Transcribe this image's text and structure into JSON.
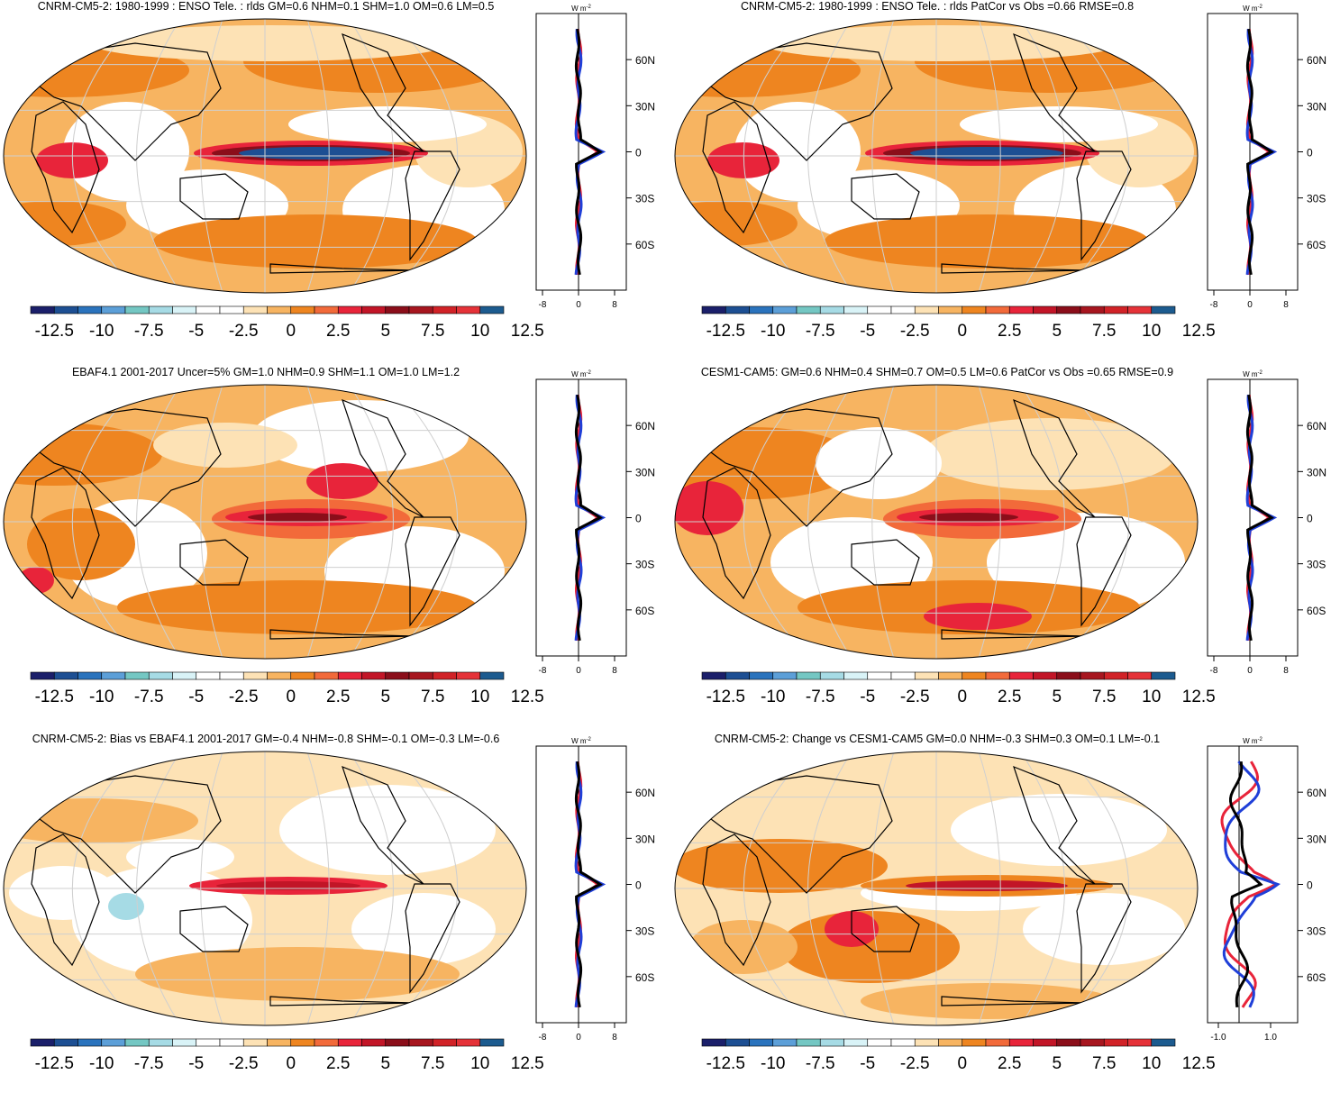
{
  "palette": [
    "#1b1f6a",
    "#1d4f93",
    "#2a73bd",
    "#5c9fd8",
    "#74c7c3",
    "#a6dbe5",
    "#d9f3f7",
    "#ffffff",
    "#ffffff",
    "#fde2b5",
    "#f7b461",
    "#ee8520",
    "#f26a3a",
    "#e8243a",
    "#c21527",
    "#8b0e1a",
    "#a7161f",
    "#d12227",
    "#e53238",
    "#1c5b8f"
  ],
  "colorbar_labels": [
    "-12.5",
    "-10",
    "-7.5",
    "-5",
    "-2.5",
    "0",
    "2.5",
    "5",
    "7.5",
    "10",
    "12.5"
  ],
  "profile_unit": "W m",
  "profile_unit_sup": "-2",
  "lat_labels": [
    "60N",
    "30N",
    "0",
    "30S",
    "60S"
  ],
  "panels": [
    {
      "title": "CNRM-CM5-2: 1980-1999 : ENSO Tele. : rlds GM=0.6 NHM=0.1 SHM=1.0 OM=0.6 LM=0.5",
      "profile_ticks": [
        "-8",
        "0",
        "8"
      ],
      "variant": "a"
    },
    {
      "title": "CNRM-CM5-2: 1980-1999 : ENSO Tele. : rlds PatCor vs Obs =0.66 RMSE=0.8",
      "profile_ticks": [
        "-8",
        "0",
        "8"
      ],
      "variant": "a"
    },
    {
      "title": "EBAF4.1 2001-2017 Uncer=5% GM=1.0 NHM=0.9 SHM=1.1 OM=1.0 LM=1.2",
      "profile_ticks": [
        "-8",
        "0",
        "8"
      ],
      "variant": "b"
    },
    {
      "title": "CESM1-CAM5: GM=0.6 NHM=0.4 SHM=0.7 OM=0.5 LM=0.6 PatCor vs Obs =0.65 RMSE=0.9",
      "profile_ticks": [
        "-8",
        "0",
        "8"
      ],
      "variant": "c"
    },
    {
      "title": "CNRM-CM5-2: Bias vs EBAF4.1 2001-2017 GM=-0.4 NHM=-0.8 SHM=-0.1 OM=-0.3 LM=-0.6",
      "profile_ticks": [
        "-8",
        "0",
        "8"
      ],
      "variant": "d"
    },
    {
      "title": "CNRM-CM5-2: Change vs CESM1-CAM5 GM=0.0 NHM=-0.3 SHM=0.3 OM=0.1 LM=-0.1",
      "profile_ticks": [
        "-1.0",
        "1.0"
      ],
      "variant": "e"
    }
  ]
}
